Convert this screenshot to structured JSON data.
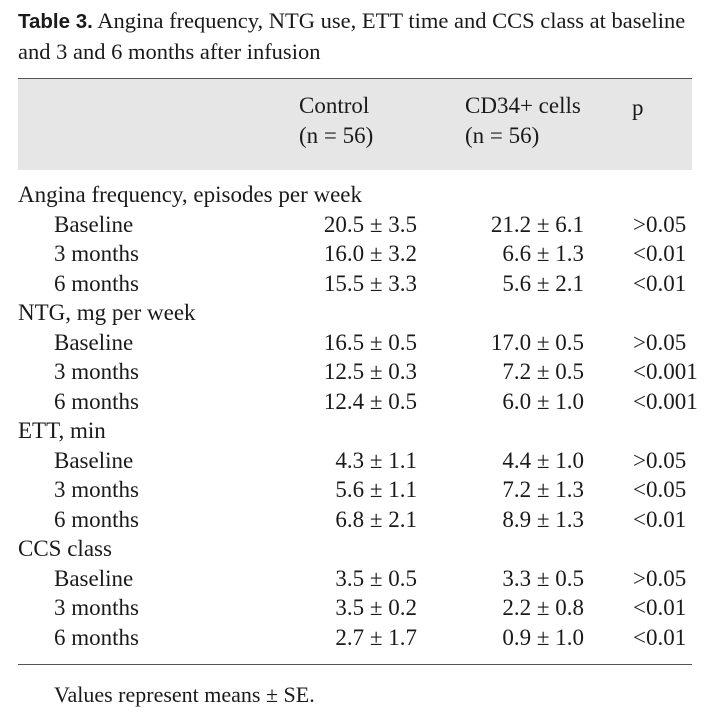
{
  "caption": {
    "label": "Table 3.",
    "text": " Angina frequency, NTG use, ETT time and CCS class at baseline and 3 and 6 months after infusion"
  },
  "header": {
    "col1_line1": "Control",
    "col1_line2": "(n = 56)",
    "col2_line1": "CD34+ cells",
    "col2_line2": "(n = 56)",
    "col3": "p"
  },
  "rows": [
    {
      "label": "Angina frequency, episodes per week",
      "type": "section",
      "control": "",
      "cd34": "",
      "p": ""
    },
    {
      "label": "Baseline",
      "type": "sub",
      "control": "20.5 ± 3.5",
      "cd34": "21.2 ± 6.1",
      "p": ">0.05"
    },
    {
      "label": "3 months",
      "type": "sub",
      "control": "16.0 ± 3.2",
      "cd34": "6.6 ± 1.3",
      "p": "<0.01"
    },
    {
      "label": "6 months",
      "type": "sub",
      "control": "15.5 ± 3.3",
      "cd34": "5.6 ± 2.1",
      "p": "<0.01"
    },
    {
      "label": "NTG, mg per week",
      "type": "section",
      "control": "",
      "cd34": "",
      "p": ""
    },
    {
      "label": "Baseline",
      "type": "sub",
      "control": "16.5 ± 0.5",
      "cd34": "17.0 ± 0.5",
      "p": ">0.05"
    },
    {
      "label": "3 months",
      "type": "sub",
      "control": "12.5 ± 0.3",
      "cd34": "7.2 ± 0.5",
      "p": "<0.001"
    },
    {
      "label": "6 months",
      "type": "sub",
      "control": "12.4 ± 0.5",
      "cd34": "6.0 ± 1.0",
      "p": "<0.001"
    },
    {
      "label": "ETT, min",
      "type": "section",
      "control": "",
      "cd34": "",
      "p": ""
    },
    {
      "label": "Baseline",
      "type": "sub",
      "control": "4.3 ± 1.1",
      "cd34": "4.4 ± 1.0",
      "p": ">0.05"
    },
    {
      "label": "3 months",
      "type": "sub",
      "control": "5.6 ± 1.1",
      "cd34": "7.2 ± 1.3",
      "p": "<0.05"
    },
    {
      "label": "6 months",
      "type": "sub",
      "control": "6.8 ± 2.1",
      "cd34": "8.9 ± 1.3",
      "p": "<0.01"
    },
    {
      "label": "CCS class",
      "type": "section",
      "control": "",
      "cd34": "",
      "p": ""
    },
    {
      "label": "Baseline",
      "type": "sub",
      "control": "3.5 ± 0.5",
      "cd34": "3.3 ± 0.5",
      "p": ">0.05"
    },
    {
      "label": "3 months",
      "type": "sub",
      "control": "3.5 ± 0.2",
      "cd34": "2.2 ± 0.8",
      "p": "<0.01"
    },
    {
      "label": "6 months",
      "type": "sub",
      "control": "2.7 ± 1.7",
      "cd34": "0.9 ± 1.0",
      "p": "<0.01"
    }
  ],
  "footnote": "Values represent means ± SE."
}
